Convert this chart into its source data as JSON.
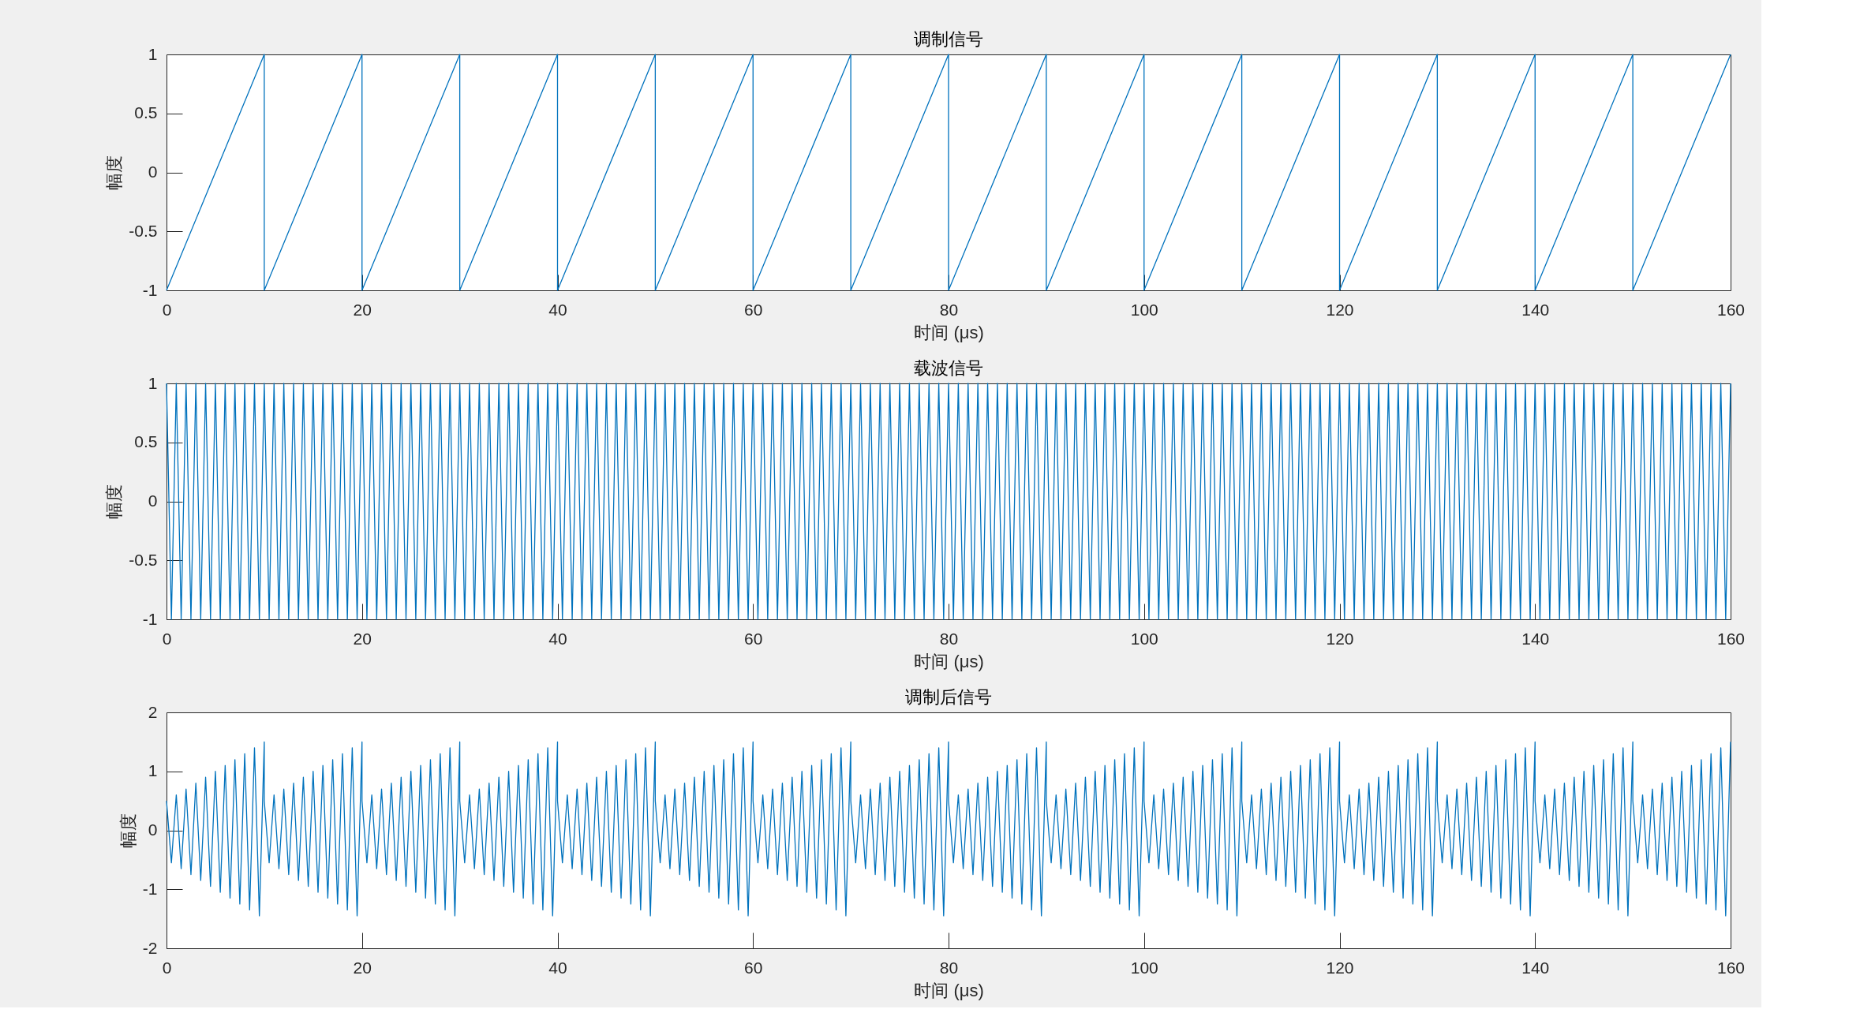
{
  "chart_data": [
    {
      "type": "line",
      "title": "调制信号",
      "xlabel": "时间 (μs)",
      "ylabel": "幅度",
      "color": "#0072bd",
      "x": [
        0,
        10,
        10,
        20,
        20,
        30,
        30,
        40,
        40,
        50,
        50,
        60,
        60,
        70,
        70,
        80,
        80,
        90,
        90,
        100,
        100,
        110,
        110,
        120,
        120,
        130,
        130,
        140,
        140,
        150,
        150,
        160
      ],
      "values": [
        -1,
        1,
        -1,
        1,
        -1,
        1,
        -1,
        1,
        -1,
        1,
        -1,
        1,
        -1,
        1,
        -1,
        1,
        -1,
        1,
        -1,
        1,
        -1,
        1,
        -1,
        1,
        -1,
        1,
        -1,
        1,
        -1,
        1,
        -1,
        1
      ],
      "xlim": [
        0,
        160
      ],
      "xticks": [
        0,
        20,
        40,
        60,
        80,
        100,
        120,
        140,
        160
      ],
      "ylim": [
        -1,
        1
      ],
      "yticks": [
        -1,
        -0.5,
        0,
        0.5,
        1
      ]
    },
    {
      "type": "line",
      "title": "载波信号",
      "xlabel": "时间 (μs)",
      "ylabel": "幅度",
      "color": "#0072bd",
      "x": [
        0,
        0.5,
        1,
        1.5,
        2,
        2.5,
        3,
        3.5,
        4,
        4.5,
        5,
        5.5,
        6,
        6.5,
        7,
        7.5,
        8,
        8.5,
        9,
        9.5,
        10,
        10.5,
        11,
        11.5,
        12,
        12.5,
        13,
        13.5,
        14,
        14.5,
        15,
        15.5,
        16,
        16.5,
        17,
        17.5,
        18,
        18.5,
        19,
        19.5,
        20,
        20.5,
        21,
        21.5,
        22,
        22.5,
        23,
        23.5,
        24,
        24.5,
        25,
        25.5,
        26,
        26.5,
        27,
        27.5,
        28,
        28.5,
        29,
        29.5,
        30,
        30.5,
        31,
        31.5,
        32,
        32.5,
        33,
        33.5,
        34,
        34.5,
        35,
        35.5,
        36,
        36.5,
        37,
        37.5,
        38,
        38.5,
        39,
        39.5,
        40,
        40.5,
        41,
        41.5,
        42,
        42.5,
        43,
        43.5,
        44,
        44.5,
        45,
        45.5,
        46,
        46.5,
        47,
        47.5,
        48,
        48.5,
        49,
        49.5,
        50,
        50.5,
        51,
        51.5,
        52,
        52.5,
        53,
        53.5,
        54,
        54.5,
        55,
        55.5,
        56,
        56.5,
        57,
        57.5,
        58,
        58.5,
        59,
        59.5,
        60,
        60.5,
        61,
        61.5,
        62,
        62.5,
        63,
        63.5,
        64,
        64.5,
        65,
        65.5,
        66,
        66.5,
        67,
        67.5,
        68,
        68.5,
        69,
        69.5,
        70,
        70.5,
        71,
        71.5,
        72,
        72.5,
        73,
        73.5,
        74,
        74.5,
        75,
        75.5,
        76,
        76.5,
        77,
        77.5,
        78,
        78.5,
        79,
        79.5,
        80,
        80.5,
        81,
        81.5,
        82,
        82.5,
        83,
        83.5,
        84,
        84.5,
        85,
        85.5,
        86,
        86.5,
        87,
        87.5,
        88,
        88.5,
        89,
        89.5,
        90,
        90.5,
        91,
        91.5,
        92,
        92.5,
        93,
        93.5,
        94,
        94.5,
        95,
        95.5,
        96,
        96.5,
        97,
        97.5,
        98,
        98.5,
        99,
        99.5,
        100,
        100.5,
        101,
        101.5,
        102,
        102.5,
        103,
        103.5,
        104,
        104.5,
        105,
        105.5,
        106,
        106.5,
        107,
        107.5,
        108,
        108.5,
        109,
        109.5,
        110,
        110.5,
        111,
        111.5,
        112,
        112.5,
        113,
        113.5,
        114,
        114.5,
        115,
        115.5,
        116,
        116.5,
        117,
        117.5,
        118,
        118.5,
        119,
        119.5,
        120,
        120.5,
        121,
        121.5,
        122,
        122.5,
        123,
        123.5,
        124,
        124.5,
        125,
        125.5,
        126,
        126.5,
        127,
        127.5,
        128,
        128.5,
        129,
        129.5,
        130,
        130.5,
        131,
        131.5,
        132,
        132.5,
        133,
        133.5,
        134,
        134.5,
        135,
        135.5,
        136,
        136.5,
        137,
        137.5,
        138,
        138.5,
        139,
        139.5,
        140,
        140.5,
        141,
        141.5,
        142,
        142.5,
        143,
        143.5,
        144,
        144.5,
        145,
        145.5,
        146,
        146.5,
        147,
        147.5,
        148,
        148.5,
        149,
        149.5,
        150,
        150.5,
        151,
        151.5,
        152,
        152.5,
        153,
        153.5,
        154,
        154.5,
        155,
        155.5,
        156,
        156.5,
        157,
        157.5,
        158,
        158.5,
        159,
        159.5,
        160
      ],
      "values": [
        1,
        -1,
        1,
        -1,
        1,
        -1,
        1,
        -1,
        1,
        -1,
        1,
        -1,
        1,
        -1,
        1,
        -1,
        1,
        -1,
        1,
        -1,
        1,
        -1,
        1,
        -1,
        1,
        -1,
        1,
        -1,
        1,
        -1,
        1,
        -1,
        1,
        -1,
        1,
        -1,
        1,
        -1,
        1,
        -1,
        1,
        -1,
        1,
        -1,
        1,
        -1,
        1,
        -1,
        1,
        -1,
        1,
        -1,
        1,
        -1,
        1,
        -1,
        1,
        -1,
        1,
        -1,
        1,
        -1,
        1,
        -1,
        1,
        -1,
        1,
        -1,
        1,
        -1,
        1,
        -1,
        1,
        -1,
        1,
        -1,
        1,
        -1,
        1,
        -1,
        1,
        -1,
        1,
        -1,
        1,
        -1,
        1,
        -1,
        1,
        -1,
        1,
        -1,
        1,
        -1,
        1,
        -1,
        1,
        -1,
        1,
        -1,
        1,
        -1,
        1,
        -1,
        1,
        -1,
        1,
        -1,
        1,
        -1,
        1,
        -1,
        1,
        -1,
        1,
        -1,
        1,
        -1,
        1,
        -1,
        1,
        -1,
        1,
        -1,
        1,
        -1,
        1,
        -1,
        1,
        -1,
        1,
        -1,
        1,
        -1,
        1,
        -1,
        1,
        -1,
        1,
        -1,
        1,
        -1,
        1,
        -1,
        1,
        -1,
        1,
        -1,
        1,
        -1,
        1,
        -1,
        1,
        -1,
        1,
        -1,
        1,
        -1,
        1,
        -1,
        1,
        -1,
        1,
        -1,
        1,
        -1,
        1,
        -1,
        1,
        -1,
        1,
        -1,
        1,
        -1,
        1,
        -1,
        1,
        -1,
        1,
        -1,
        1,
        -1,
        1,
        -1,
        1,
        -1,
        1,
        -1,
        1,
        -1,
        1,
        -1,
        1,
        -1,
        1,
        -1,
        1,
        -1,
        1,
        -1,
        1,
        -1,
        1,
        -1,
        1,
        -1,
        1,
        -1,
        1,
        -1,
        1,
        -1,
        1,
        -1,
        1,
        -1,
        1,
        -1,
        1,
        -1,
        1,
        -1,
        1,
        -1,
        1,
        -1,
        1,
        -1,
        1,
        -1,
        1,
        -1,
        1,
        -1,
        1,
        -1,
        1,
        -1,
        1,
        -1,
        1,
        -1,
        1,
        -1,
        1,
        -1,
        1,
        -1,
        1,
        -1,
        1,
        -1,
        1,
        -1,
        1,
        -1,
        1,
        -1,
        1,
        -1,
        1,
        -1,
        1,
        -1,
        1,
        -1,
        1,
        -1,
        1,
        -1,
        1,
        -1,
        1,
        -1,
        1,
        -1,
        1,
        -1,
        1,
        -1,
        1,
        -1,
        1,
        -1,
        1,
        -1,
        1,
        -1,
        1,
        -1,
        1,
        -1,
        1,
        -1,
        1,
        -1,
        1,
        -1,
        1,
        -1,
        1,
        -1,
        1,
        -1,
        1,
        -1,
        1,
        -1,
        1,
        -1,
        1,
        -1,
        1,
        -1,
        1,
        -1,
        1,
        -1,
        1,
        -1,
        1
      ],
      "xlim": [
        0,
        160
      ],
      "xticks": [
        0,
        20,
        40,
        60,
        80,
        100,
        120,
        140,
        160
      ],
      "ylim": [
        -1,
        1
      ],
      "yticks": [
        -1,
        -0.5,
        0,
        0.5,
        1
      ]
    },
    {
      "type": "line",
      "title": "调制后信号",
      "xlabel": "时间 (μs)",
      "ylabel": "幅度",
      "color": "#0072bd",
      "x": [
        0,
        0.5,
        1,
        1.5,
        2,
        2.5,
        3,
        3.5,
        4,
        4.5,
        5,
        5.5,
        6,
        6.5,
        7,
        7.5,
        8,
        8.5,
        9,
        9.5,
        10,
        10,
        10.5,
        11,
        11.5,
        12,
        12.5,
        13,
        13.5,
        14,
        14.5,
        15,
        15.5,
        16,
        16.5,
        17,
        17.5,
        18,
        18.5,
        19,
        19.5,
        20,
        20,
        20.5,
        21,
        21.5,
        22,
        22.5,
        23,
        23.5,
        24,
        24.5,
        25,
        25.5,
        26,
        26.5,
        27,
        27.5,
        28,
        28.5,
        29,
        29.5,
        30,
        30,
        30.5,
        31,
        31.5,
        32,
        32.5,
        33,
        33.5,
        34,
        34.5,
        35,
        35.5,
        36,
        36.5,
        37,
        37.5,
        38,
        38.5,
        39,
        39.5,
        40,
        40,
        40.5,
        41,
        41.5,
        42,
        42.5,
        43,
        43.5,
        44,
        44.5,
        45,
        45.5,
        46,
        46.5,
        47,
        47.5,
        48,
        48.5,
        49,
        49.5,
        50,
        50,
        50.5,
        51,
        51.5,
        52,
        52.5,
        53,
        53.5,
        54,
        54.5,
        55,
        55.5,
        56,
        56.5,
        57,
        57.5,
        58,
        58.5,
        59,
        59.5,
        60,
        60,
        60.5,
        61,
        61.5,
        62,
        62.5,
        63,
        63.5,
        64,
        64.5,
        65,
        65.5,
        66,
        66.5,
        67,
        67.5,
        68,
        68.5,
        69,
        69.5,
        70,
        70,
        70.5,
        71,
        71.5,
        72,
        72.5,
        73,
        73.5,
        74,
        74.5,
        75,
        75.5,
        76,
        76.5,
        77,
        77.5,
        78,
        78.5,
        79,
        79.5,
        80,
        80,
        80.5,
        81,
        81.5,
        82,
        82.5,
        83,
        83.5,
        84,
        84.5,
        85,
        85.5,
        86,
        86.5,
        87,
        87.5,
        88,
        88.5,
        89,
        89.5,
        90,
        90,
        90.5,
        91,
        91.5,
        92,
        92.5,
        93,
        93.5,
        94,
        94.5,
        95,
        95.5,
        96,
        96.5,
        97,
        97.5,
        98,
        98.5,
        99,
        99.5,
        100,
        100,
        100.5,
        101,
        101.5,
        102,
        102.5,
        103,
        103.5,
        104,
        104.5,
        105,
        105.5,
        106,
        106.5,
        107,
        107.5,
        108,
        108.5,
        109,
        109.5,
        110,
        110,
        110.5,
        111,
        111.5,
        112,
        112.5,
        113,
        113.5,
        114,
        114.5,
        115,
        115.5,
        116,
        116.5,
        117,
        117.5,
        118,
        118.5,
        119,
        119.5,
        120,
        120,
        120.5,
        121,
        121.5,
        122,
        122.5,
        123,
        123.5,
        124,
        124.5,
        125,
        125.5,
        126,
        126.5,
        127,
        127.5,
        128,
        128.5,
        129,
        129.5,
        130,
        130,
        130.5,
        131,
        131.5,
        132,
        132.5,
        133,
        133.5,
        134,
        134.5,
        135,
        135.5,
        136,
        136.5,
        137,
        137.5,
        138,
        138.5,
        139,
        139.5,
        140,
        140,
        140.5,
        141,
        141.5,
        142,
        142.5,
        143,
        143.5,
        144,
        144.5,
        145,
        145.5,
        146,
        146.5,
        147,
        147.5,
        148,
        148.5,
        149,
        149.5,
        150,
        150,
        150.5,
        151,
        151.5,
        152,
        152.5,
        153,
        153.5,
        154,
        154.5,
        155,
        155.5,
        156,
        156.5,
        157,
        157.5,
        158,
        158.5,
        159,
        159.5,
        160
      ],
      "values": [
        0.5,
        -0.55,
        0.6,
        -0.65,
        0.7,
        -0.75,
        0.8,
        -0.85,
        0.9,
        -0.95,
        1,
        -1.05,
        1.1,
        -1.15,
        1.2,
        -1.25,
        1.3,
        -1.35,
        1.4,
        -1.45,
        1.5,
        0.5,
        -0.55,
        0.6,
        -0.65,
        0.7,
        -0.75,
        0.8,
        -0.85,
        0.9,
        -0.95,
        1,
        -1.05,
        1.1,
        -1.15,
        1.2,
        -1.25,
        1.3,
        -1.35,
        1.4,
        -1.45,
        1.5,
        0.5,
        -0.55,
        0.6,
        -0.65,
        0.7,
        -0.75,
        0.8,
        -0.85,
        0.9,
        -0.95,
        1,
        -1.05,
        1.1,
        -1.15,
        1.2,
        -1.25,
        1.3,
        -1.35,
        1.4,
        -1.45,
        1.5,
        0.5,
        -0.55,
        0.6,
        -0.65,
        0.7,
        -0.75,
        0.8,
        -0.85,
        0.9,
        -0.95,
        1,
        -1.05,
        1.1,
        -1.15,
        1.2,
        -1.25,
        1.3,
        -1.35,
        1.4,
        -1.45,
        1.5,
        0.5,
        -0.55,
        0.6,
        -0.65,
        0.7,
        -0.75,
        0.8,
        -0.85,
        0.9,
        -0.95,
        1,
        -1.05,
        1.1,
        -1.15,
        1.2,
        -1.25,
        1.3,
        -1.35,
        1.4,
        -1.45,
        1.5,
        0.5,
        -0.55,
        0.6,
        -0.65,
        0.7,
        -0.75,
        0.8,
        -0.85,
        0.9,
        -0.95,
        1,
        -1.05,
        1.1,
        -1.15,
        1.2,
        -1.25,
        1.3,
        -1.35,
        1.4,
        -1.45,
        1.5,
        0.5,
        -0.55,
        0.6,
        -0.65,
        0.7,
        -0.75,
        0.8,
        -0.85,
        0.9,
        -0.95,
        1,
        -1.05,
        1.1,
        -1.15,
        1.2,
        -1.25,
        1.3,
        -1.35,
        1.4,
        -1.45,
        1.5,
        0.5,
        -0.55,
        0.6,
        -0.65,
        0.7,
        -0.75,
        0.8,
        -0.85,
        0.9,
        -0.95,
        1,
        -1.05,
        1.1,
        -1.15,
        1.2,
        -1.25,
        1.3,
        -1.35,
        1.4,
        -1.45,
        1.5,
        0.5,
        -0.55,
        0.6,
        -0.65,
        0.7,
        -0.75,
        0.8,
        -0.85,
        0.9,
        -0.95,
        1,
        -1.05,
        1.1,
        -1.15,
        1.2,
        -1.25,
        1.3,
        -1.35,
        1.4,
        -1.45,
        1.5,
        0.5,
        -0.55,
        0.6,
        -0.65,
        0.7,
        -0.75,
        0.8,
        -0.85,
        0.9,
        -0.95,
        1,
        -1.05,
        1.1,
        -1.15,
        1.2,
        -1.25,
        1.3,
        -1.35,
        1.4,
        -1.45,
        1.5,
        0.5,
        -0.55,
        0.6,
        -0.65,
        0.7,
        -0.75,
        0.8,
        -0.85,
        0.9,
        -0.95,
        1,
        -1.05,
        1.1,
        -1.15,
        1.2,
        -1.25,
        1.3,
        -1.35,
        1.4,
        -1.45,
        1.5,
        0.5,
        -0.55,
        0.6,
        -0.65,
        0.7,
        -0.75,
        0.8,
        -0.85,
        0.9,
        -0.95,
        1,
        -1.05,
        1.1,
        -1.15,
        1.2,
        -1.25,
        1.3,
        -1.35,
        1.4,
        -1.45,
        1.5,
        0.5,
        -0.55,
        0.6,
        -0.65,
        0.7,
        -0.75,
        0.8,
        -0.85,
        0.9,
        -0.95,
        1,
        -1.05,
        1.1,
        -1.15,
        1.2,
        -1.25,
        1.3,
        -1.35,
        1.4,
        -1.45,
        1.5,
        0.5,
        -0.55,
        0.6,
        -0.65,
        0.7,
        -0.75,
        0.8,
        -0.85,
        0.9,
        -0.95,
        1,
        -1.05,
        1.1,
        -1.15,
        1.2,
        -1.25,
        1.3,
        -1.35,
        1.4,
        -1.45,
        1.5,
        0.5,
        -0.55,
        0.6,
        -0.65,
        0.7,
        -0.75,
        0.8,
        -0.85,
        0.9,
        -0.95,
        1,
        -1.05,
        1.1,
        -1.15,
        1.2,
        -1.25,
        1.3,
        -1.35,
        1.4,
        -1.45,
        1.5,
        0.5,
        -0.55,
        0.6,
        -0.65,
        0.7,
        -0.75,
        0.8,
        -0.85,
        0.9,
        -0.95,
        1,
        -1.05,
        1.1,
        -1.15,
        1.2,
        -1.25,
        1.3,
        -1.35,
        1.4,
        -1.45,
        1.5
      ],
      "xlim": [
        0,
        160
      ],
      "xticks": [
        0,
        20,
        40,
        60,
        80,
        100,
        120,
        140,
        160
      ],
      "ylim": [
        -2,
        2
      ],
      "yticks": [
        -2,
        -1,
        0,
        1,
        2
      ]
    }
  ]
}
